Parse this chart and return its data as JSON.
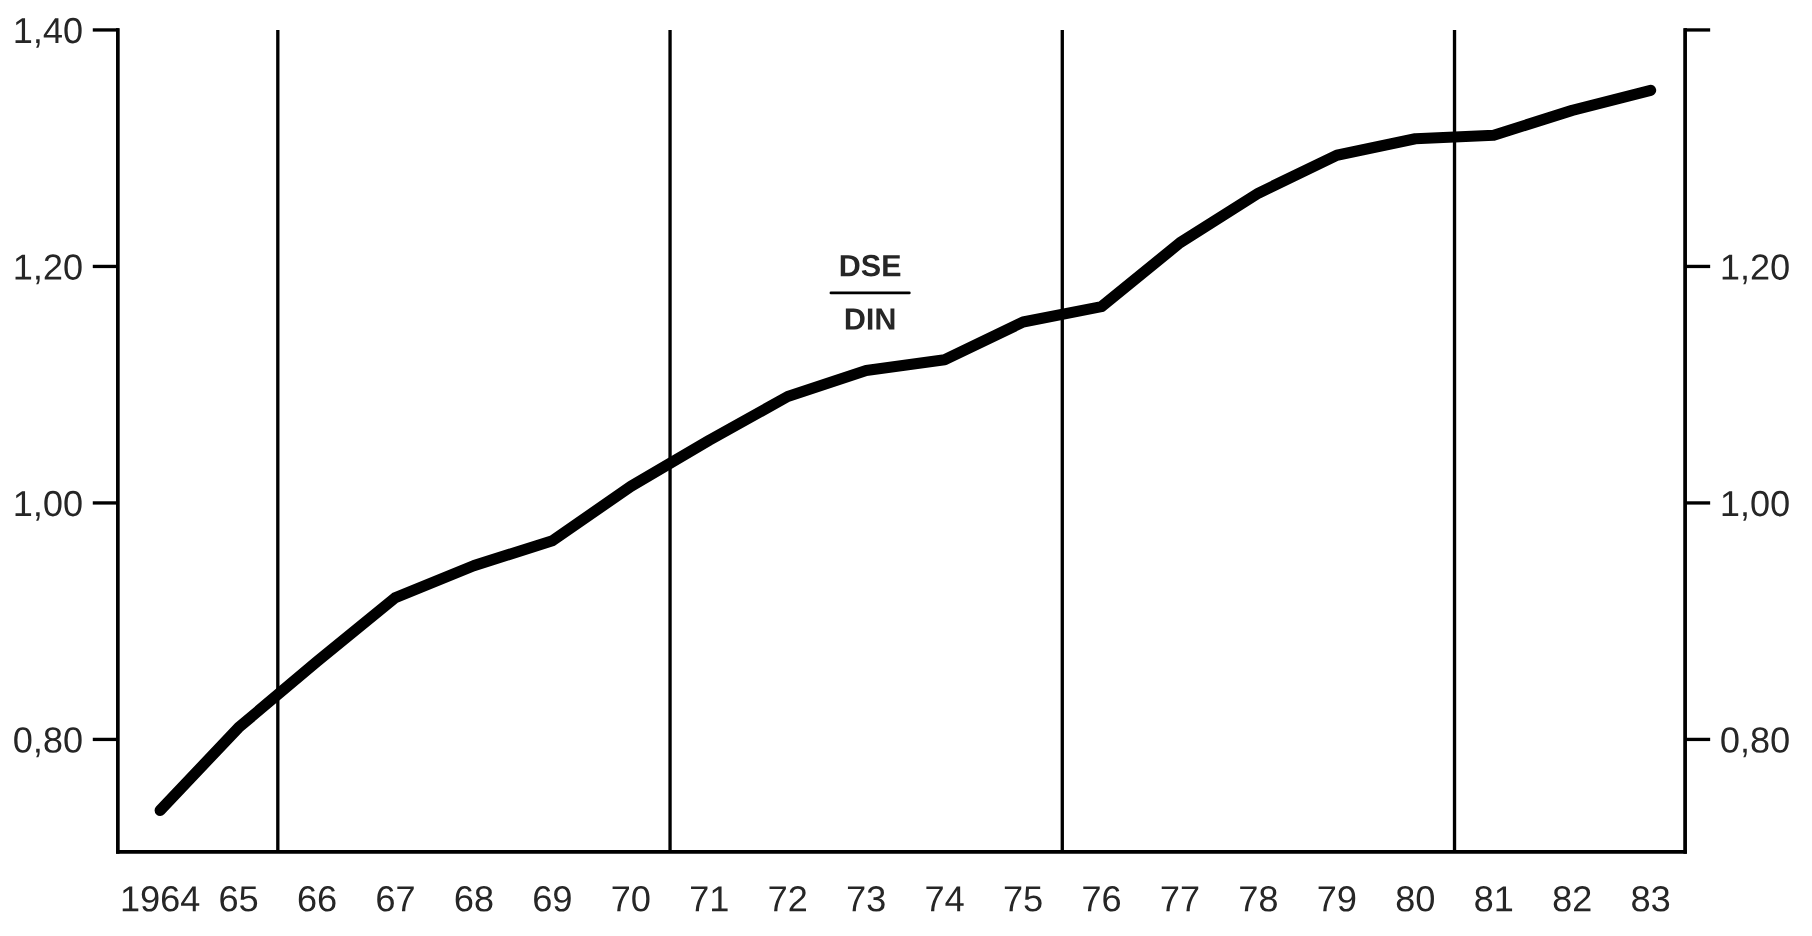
{
  "chart_data": {
    "type": "line",
    "annotations": [
      "DSE",
      "DIN"
    ],
    "x": [
      1964,
      1965,
      1966,
      1967,
      1968,
      1969,
      1970,
      1971,
      1972,
      1973,
      1974,
      1975,
      1976,
      1977,
      1978,
      1979,
      1980,
      1981,
      1982,
      1983
    ],
    "series": [
      {
        "color": "#000000",
        "values": [
          0.74,
          0.81,
          0.866,
          0.92,
          0.947,
          0.968,
          1.014,
          1.053,
          1.09,
          1.112,
          1.121,
          1.153,
          1.166,
          1.22,
          1.262,
          1.294,
          1.308,
          1.311,
          1.332,
          1.349
        ]
      }
    ],
    "xlim": [
      1963.46,
      1983.44
    ],
    "xticks": [
      {
        "value": 1964,
        "label": "1964"
      },
      {
        "value": 1965,
        "label": "65"
      },
      {
        "value": 1966,
        "label": "66"
      },
      {
        "value": 1967,
        "label": "67"
      },
      {
        "value": 1968,
        "label": "68"
      },
      {
        "value": 1969,
        "label": "69"
      },
      {
        "value": 1970,
        "label": "70"
      },
      {
        "value": 1971,
        "label": "71"
      },
      {
        "value": 1972,
        "label": "72"
      },
      {
        "value": 1973,
        "label": "73"
      },
      {
        "value": 1974,
        "label": "74"
      },
      {
        "value": 1975,
        "label": "75"
      },
      {
        "value": 1976,
        "label": "76"
      },
      {
        "value": 1977,
        "label": "77"
      },
      {
        "value": 1978,
        "label": "78"
      },
      {
        "value": 1979,
        "label": "79"
      },
      {
        "value": 1980,
        "label": "80"
      },
      {
        "value": 1981,
        "label": "81"
      },
      {
        "value": 1982,
        "label": "82"
      },
      {
        "value": 1983,
        "label": "83"
      }
    ],
    "ylim": [
      0.705,
      1.4
    ],
    "yticks": [
      {
        "value": 0.8,
        "label": "0,80"
      },
      {
        "value": 1.0,
        "label": "1,00"
      },
      {
        "value": 1.2,
        "label": "1,20"
      },
      {
        "value": 1.4,
        "label": "1,40"
      }
    ],
    "y2lim": [
      0.705,
      1.4
    ],
    "y2ticks": [
      {
        "value": 0.8,
        "label": "0,80"
      },
      {
        "value": 1.0,
        "label": "1,00"
      },
      {
        "value": 1.2,
        "label": "1,20"
      },
      {
        "value": 1.4,
        "label": null
      }
    ],
    "ref_lines": [
      {
        "axis": "x",
        "value": 1965.5
      },
      {
        "axis": "x",
        "value": 1970.5
      },
      {
        "axis": "x",
        "value": 1975.5
      },
      {
        "axis": "x",
        "value": 1980.5
      }
    ],
    "grid": false,
    "legend": false,
    "marker": "none",
    "line_style": "solid"
  }
}
